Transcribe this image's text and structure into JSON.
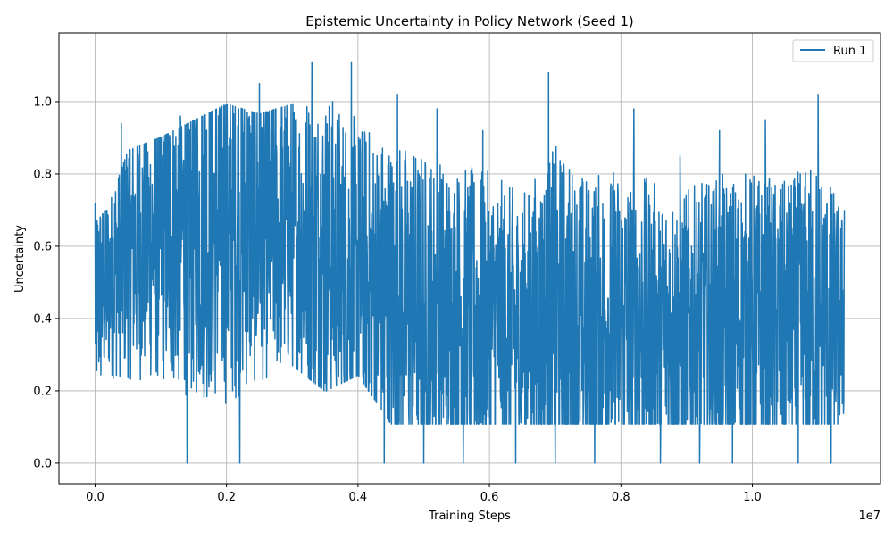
{
  "chart_data": {
    "type": "line",
    "title": "Epistemic Uncertainty in Policy Network (Seed 1)",
    "xlabel": "Training Steps",
    "ylabel": "Uncertainty",
    "x_offset_label": "1e7",
    "xlim": [
      -0.055,
      1.195
    ],
    "ylim": [
      -0.057,
      1.19
    ],
    "x_ticks": [
      0.0,
      0.2,
      0.4,
      0.6,
      0.8,
      1.0
    ],
    "x_tick_labels": [
      "0.0",
      "0.2",
      "0.4",
      "0.6",
      "0.8",
      "1.0"
    ],
    "y_ticks": [
      0.0,
      0.2,
      0.4,
      0.6,
      0.8,
      1.0
    ],
    "y_tick_labels": [
      "0.0",
      "0.2",
      "0.4",
      "0.6",
      "0.8",
      "1.0"
    ],
    "grid": true,
    "legend": "top-right",
    "color": "#1f77b4",
    "series": [
      {
        "name": "Run 1",
        "x_unit_scale": "x 1e7 training steps",
        "envelope_x": [
          0.0,
          0.02,
          0.05,
          0.1,
          0.15,
          0.2,
          0.25,
          0.3,
          0.35,
          0.4,
          0.45,
          0.5,
          0.55,
          0.6,
          0.65,
          0.7,
          0.75,
          0.8,
          0.85,
          0.9,
          0.95,
          1.0,
          1.05,
          1.1,
          1.14
        ],
        "envelope_high": [
          0.72,
          0.77,
          0.94,
          0.98,
          1.03,
          1.08,
          1.05,
          1.08,
          1.11,
          1.11,
          1.0,
          0.98,
          0.95,
          0.9,
          0.83,
          1.08,
          0.92,
          0.98,
          0.89,
          0.85,
          0.92,
          0.95,
          0.89,
          1.02,
          0.7
        ],
        "envelope_low": [
          0.0,
          0.12,
          0.1,
          0.08,
          0.0,
          0.0,
          0.1,
          0.18,
          0.1,
          0.15,
          0.0,
          0.0,
          0.0,
          0.0,
          0.0,
          0.0,
          0.0,
          0.0,
          0.0,
          0.0,
          0.0,
          0.0,
          0.0,
          0.0,
          0.0
        ],
        "envelope_mid": [
          0.45,
          0.5,
          0.6,
          0.62,
          0.65,
          0.66,
          0.65,
          0.64,
          0.58,
          0.52,
          0.45,
          0.42,
          0.4,
          0.4,
          0.38,
          0.38,
          0.38,
          0.38,
          0.38,
          0.38,
          0.38,
          0.38,
          0.38,
          0.38,
          0.4
        ],
        "spikes": [
          [
            0.0,
            0.72
          ],
          [
            0.04,
            0.94
          ],
          [
            0.13,
            0.96
          ],
          [
            0.25,
            1.05
          ],
          [
            0.33,
            1.11
          ],
          [
            0.39,
            1.11
          ],
          [
            0.46,
            1.02
          ],
          [
            0.52,
            0.98
          ],
          [
            0.59,
            0.92
          ],
          [
            0.69,
            1.08
          ],
          [
            0.76,
            0.92
          ],
          [
            0.82,
            0.98
          ],
          [
            0.89,
            0.85
          ],
          [
            0.95,
            0.92
          ],
          [
            1.02,
            0.95
          ],
          [
            1.1,
            1.02
          ],
          [
            1.14,
            0.7
          ],
          [
            0.14,
            0.0
          ],
          [
            0.22,
            0.0
          ],
          [
            0.44,
            0.0
          ],
          [
            0.5,
            0.0
          ],
          [
            0.56,
            0.0
          ],
          [
            0.64,
            0.0
          ],
          [
            0.7,
            0.0
          ],
          [
            0.76,
            0.0
          ],
          [
            0.86,
            0.0
          ],
          [
            0.92,
            0.0
          ],
          [
            0.97,
            0.0
          ],
          [
            1.07,
            0.0
          ],
          [
            1.12,
            0.0
          ]
        ]
      }
    ]
  }
}
